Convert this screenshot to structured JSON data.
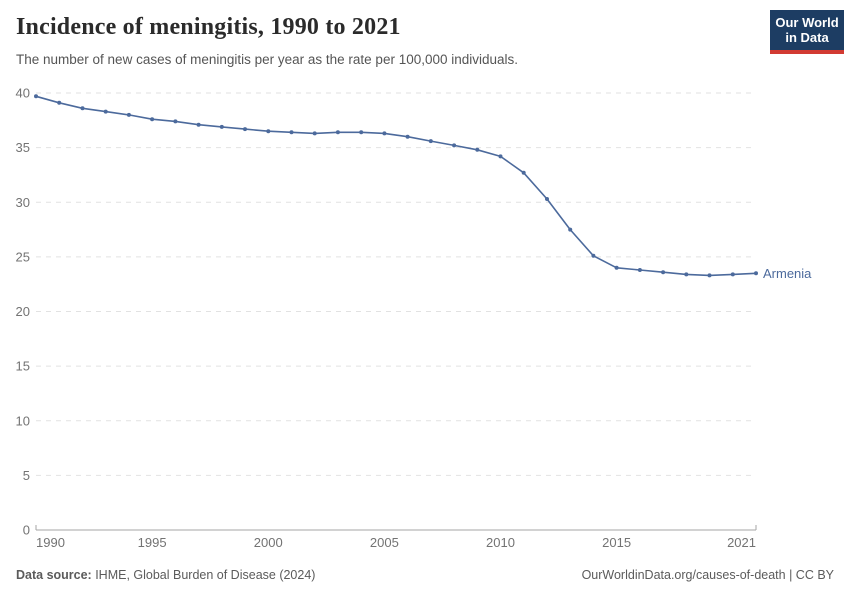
{
  "header": {
    "title": "Incidence of meningitis, 1990 to 2021",
    "subtitle": "The number of new cases of meningitis per year as the rate per 100,000 individuals."
  },
  "logo": {
    "line1": "Our World",
    "line2": "in Data",
    "bg_color": "#1d3d63",
    "accent_color": "#d23a32"
  },
  "chart_data": {
    "type": "line",
    "title": "Incidence of meningitis, 1990 to 2021",
    "x": [
      1990,
      1991,
      1992,
      1993,
      1994,
      1995,
      1996,
      1997,
      1998,
      1999,
      2000,
      2001,
      2002,
      2003,
      2004,
      2005,
      2006,
      2007,
      2008,
      2009,
      2010,
      2011,
      2012,
      2013,
      2014,
      2015,
      2016,
      2017,
      2018,
      2019,
      2020,
      2021
    ],
    "series": [
      {
        "name": "Armenia",
        "color": "#4c6a9c",
        "values": [
          39.7,
          39.1,
          38.6,
          38.3,
          38.0,
          37.6,
          37.4,
          37.1,
          36.9,
          36.7,
          36.5,
          36.4,
          36.3,
          36.4,
          36.4,
          36.3,
          36.0,
          35.6,
          35.2,
          34.8,
          34.2,
          32.7,
          30.3,
          27.5,
          25.1,
          24.0,
          23.8,
          23.6,
          23.4,
          23.3,
          23.4,
          23.5
        ]
      }
    ],
    "xlabel": "",
    "ylabel": "",
    "ylim": [
      0,
      40
    ],
    "xlim": [
      1990,
      2021
    ],
    "yticks": [
      0,
      5,
      10,
      15,
      20,
      25,
      30,
      35,
      40
    ],
    "xticks": [
      1990,
      1995,
      2000,
      2005,
      2010,
      2015,
      2021
    ],
    "grid": "horizontal-dashed",
    "legend": "line-end-label"
  },
  "colors": {
    "line": "#4c6a9c",
    "grid": "#e2e2e2",
    "axis": "#a5a5a5",
    "tick_label": "#737373",
    "series_label": "#4c6a9c"
  },
  "footer": {
    "datasource_label": "Data source:",
    "datasource_value": " IHME, Global Burden of Disease (2024)",
    "rights": "OurWorldinData.org/causes-of-death | CC BY"
  }
}
